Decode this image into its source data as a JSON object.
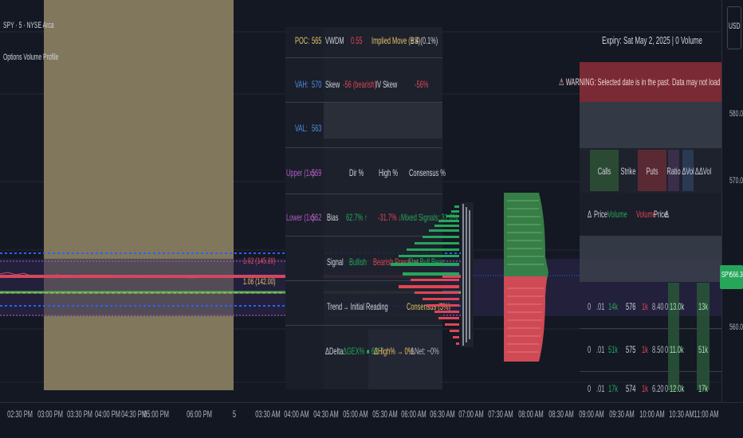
{
  "symbol": {
    "title": "SPY · 5 · NYSE Arca",
    "indicator": "Options Volume Profile",
    "currency": "USD"
  },
  "price": {
    "current_label": "SPY",
    "current_value": "566.30",
    "axis": [
      "580.00",
      "570.00",
      "560.00"
    ]
  },
  "time_axis": [
    "02:30 PM",
    "03:00 PM",
    "03:30 PM",
    "04:00 PM",
    "04:30 PM",
    "05:00 PM",
    "06:00 PM",
    "5",
    "03:30 AM",
    "04:00 AM",
    "04:30 AM",
    "05:00 AM",
    "05:30 AM",
    "06:00 AM",
    "06:30 AM",
    "07:00 AM",
    "07:30 AM",
    "08:00 AM",
    "08:30 AM",
    "09:00 AM",
    "09:30 AM",
    "10:00 AM",
    "10:30 AM",
    "11:00 AM"
  ],
  "metrics_table": {
    "rows": [
      {
        "label": "POC:",
        "value": "565",
        "label_color": "#e8c36a"
      },
      {
        "label": "VAH:",
        "value": "570",
        "label_color": "#4f8ee8"
      },
      {
        "label": "VAL:",
        "value": "563",
        "label_color": "#4f8ee8"
      },
      {
        "label": "Upper (1x):",
        "value": "569",
        "label_color": "#b25ec5"
      },
      {
        "label": "Lower (1x):",
        "value": "562",
        "label_color": "#b25ec5"
      }
    ],
    "header": [
      "VWDM",
      "0.55",
      "Implied Move (BS)",
      "± 4 (0.1%)"
    ],
    "skew_row": [
      "Skew",
      "-56 (bearish)",
      "IV Skew",
      "-56%"
    ],
    "dir_header": [
      "Dir %",
      "High %",
      "Consensus %"
    ],
    "bias_row": [
      "Bias",
      "62.7% ↑",
      "-31.7% ↓",
      "Mixed Signals: 31.0% ↑"
    ],
    "signal_row": [
      "Signal",
      "Bullish",
      "Bearish Pressure",
      "Flat Bull Bear"
    ],
    "trend_row": [
      "Trend",
      "→ Initial Reading",
      "Consensus (3%)"
    ],
    "delta_row": [
      "ΔDelta",
      "ΔGEX% ● 62.7",
      "ΔHigh% → 0%",
      "ΔNet: ~0%"
    ]
  },
  "expiry_panel": {
    "title": "Expiry: Sat May 2, 2025 | 0 Volume",
    "warning": "⚠ WARNING: Selected date is in the past. Data may not load correctly.",
    "headers": [
      "Calls",
      "Strike",
      "Puts",
      "Ratio",
      "ΔVol",
      "ΔΔVol"
    ],
    "subheaders": [
      "Δ",
      "Price",
      "Volume",
      "Volume",
      "Price",
      "Δ"
    ],
    "rows": [
      [
        "0",
        ".01",
        "14k",
        "576",
        "1k",
        "8.40",
        "0",
        "13.0k",
        "13k"
      ],
      [
        "0",
        ".01",
        "51k",
        "575",
        "1k",
        "8.50",
        "0",
        "11.0k",
        "51k"
      ],
      [
        "0",
        ".01",
        "17k",
        "574",
        "1k",
        "6.20",
        "0",
        "12.0k",
        "17k"
      ]
    ]
  },
  "chart_data": {
    "type": "table",
    "title": "Options Volume Profile",
    "poc": 565,
    "vah": 570,
    "val": 563,
    "upper_1x": 569,
    "lower_1x": 562
  },
  "colors": {
    "bg": "#141823",
    "green": "#26a65b",
    "red": "#e04555",
    "blue": "#2962ff",
    "tan": "#8e8462",
    "purple": "#b25ec5",
    "gold": "#e8c36a"
  },
  "strike_labels": [
    "1.02 (145.39)",
    "1.06 (142.00)"
  ]
}
